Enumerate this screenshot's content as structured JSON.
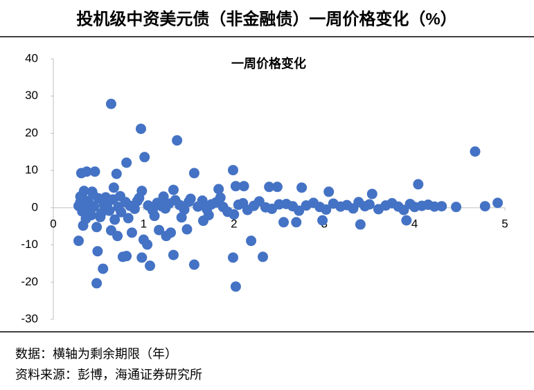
{
  "chart_data": {
    "type": "scatter",
    "title": "投机级中资美元债（非金融债）一周价格变化（%）",
    "subtitle": "一周价格变化",
    "note": "数据：横轴为剩余期限（年）",
    "source": "资料来源：彭博，海通证券研究所",
    "color": "#4472c4",
    "xlim": [
      0,
      5
    ],
    "ylim": [
      -30,
      40
    ],
    "xticks": [
      0,
      1,
      2,
      3,
      4,
      5
    ],
    "yticks": [
      -30,
      -20,
      -10,
      0,
      10,
      20,
      30,
      40
    ],
    "grid": false,
    "x": [
      0.64,
      0.97,
      1.37,
      1.01,
      0.81,
      0.7,
      0.37,
      0.46,
      0.31,
      1.56,
      1.99,
      4.67,
      4.04,
      0.67,
      0.43,
      0.34,
      0.98,
      1.33,
      1.83,
      2.02,
      2.11,
      2.39,
      2.48,
      2.75,
      3.05,
      3.53,
      4.92,
      4.78,
      4.46,
      0.28,
      0.49,
      0.55,
      0.48,
      0.77,
      0.81,
      0.98,
      1.07,
      1.04,
      1.0,
      0.87,
      0.64,
      0.71,
      1.33,
      1.56,
      1.3,
      1.17,
      1.25,
      1.48,
      1.66,
      1.99,
      2.02,
      2.19,
      2.32,
      2.55,
      2.69,
      2.98,
      3.4,
      3.91,
      0.33,
      0.48,
      0.28,
      0.3,
      0.32,
      0.35,
      0.38,
      0.4,
      0.42,
      0.45,
      0.5,
      0.53,
      0.56,
      0.6,
      0.62,
      0.66,
      0.72,
      0.75,
      0.8,
      0.85,
      0.9,
      0.93,
      1.05,
      1.1,
      1.15,
      1.2,
      1.24,
      1.28,
      1.35,
      1.4,
      1.45,
      1.5,
      1.6,
      1.65,
      1.7,
      1.75,
      1.8,
      1.88,
      1.93,
      2.05,
      2.1,
      2.15,
      2.22,
      2.28,
      2.35,
      2.42,
      2.5,
      2.58,
      2.65,
      2.72,
      2.8,
      2.88,
      2.95,
      3.02,
      3.1,
      3.18,
      3.25,
      3.32,
      3.38,
      3.45,
      3.5,
      3.6,
      3.68,
      3.75,
      3.82,
      3.88,
      3.95,
      4.0,
      4.08,
      4.15,
      4.22,
      4.3,
      0.3,
      0.36,
      0.44,
      0.52,
      0.58,
      0.68,
      0.74,
      0.83,
      0.95,
      1.12,
      1.22,
      1.42,
      1.52,
      1.72,
      1.85,
      2.0
    ],
    "values": [
      27.9,
      21.2,
      18.1,
      13.6,
      12.1,
      9.1,
      9.7,
      9.7,
      9.3,
      9.3,
      10.1,
      15.1,
      6.3,
      5.4,
      4.3,
      4.5,
      4.5,
      4.8,
      5.0,
      5.8,
      5.8,
      5.6,
      5.6,
      5.4,
      4.3,
      3.7,
      1.3,
      0.4,
      0.2,
      -8.9,
      -11.7,
      -16.4,
      -20.3,
      -13.2,
      -13.0,
      -13.4,
      -15.6,
      -9.9,
      -8.6,
      -6.7,
      -6.1,
      -7.6,
      -12.7,
      -15.3,
      -6.7,
      -6.0,
      -7.6,
      -5.8,
      -3.5,
      -13.4,
      -21.2,
      -8.9,
      -13.2,
      -3.9,
      -3.9,
      -3.4,
      -4.5,
      -3.4,
      -4.8,
      -5.2,
      0.5,
      1.5,
      -1.0,
      2.0,
      -0.5,
      1.0,
      -2.0,
      0.3,
      2.5,
      -1.5,
      0.8,
      1.2,
      -0.8,
      2.2,
      0.2,
      -1.2,
      1.5,
      0.5,
      -0.3,
      1.8,
      0.6,
      -0.7,
      1.3,
      0.4,
      -0.2,
      1.1,
      2.0,
      0.7,
      -0.5,
      1.6,
      0.3,
      1.9,
      -0.4,
      0.9,
      1.4,
      0.2,
      -1.1,
      0.8,
      1.2,
      -0.6,
      0.5,
      1.7,
      0.1,
      -0.3,
      0.9,
      1.0,
      0.4,
      -0.8,
      0.6,
      1.3,
      0.2,
      -0.5,
      1.1,
      0.3,
      0.7,
      -0.2,
      1.5,
      0.4,
      0.9,
      -0.4,
      0.6,
      1.2,
      0.3,
      -0.6,
      1.0,
      0.2,
      0.5,
      0.8,
      0.3,
      0.4,
      3.0,
      -3.0,
      3.5,
      -2.5,
      2.8,
      -3.2,
      3.1,
      -2.8,
      2.6,
      -2.2,
      3.0,
      -2.6,
      2.4,
      -2.0,
      2.7,
      -1.8
    ]
  }
}
